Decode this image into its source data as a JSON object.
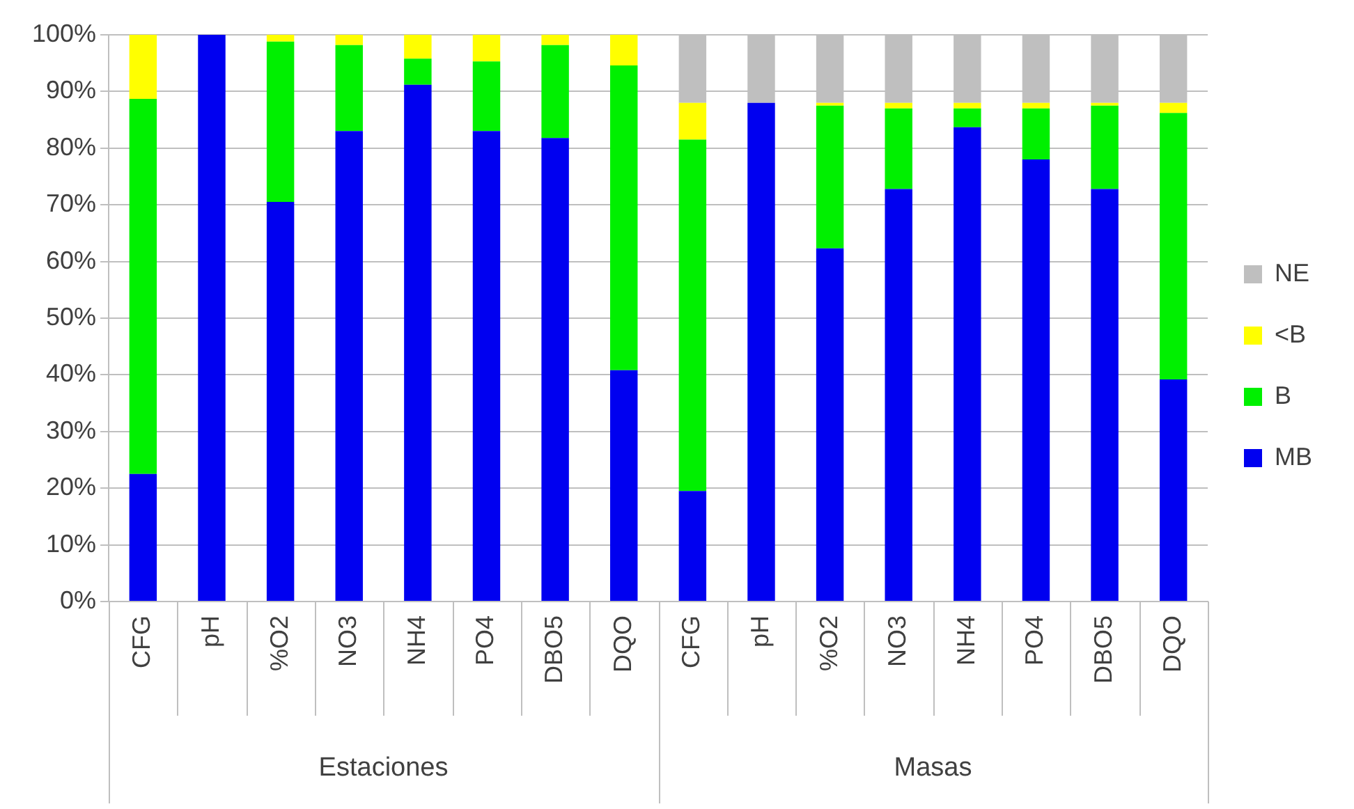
{
  "chart_data": {
    "type": "bar",
    "stacked": true,
    "categories": [
      "CFG",
      "pH",
      "%O2",
      "NO3",
      "NH4",
      "PO4",
      "DBO5",
      "DQO",
      "CFG",
      "pH",
      "%O2",
      "NO3",
      "NH4",
      "PO4",
      "DBO5",
      "DQO"
    ],
    "series": [
      {
        "name": "MB",
        "color": "#0000f0",
        "values": [
          22.5,
          100,
          70.5,
          83,
          91.2,
          83,
          81.8,
          40.8,
          19.5,
          88,
          62.3,
          72.8,
          83.7,
          78,
          72.8,
          39.2
        ]
      },
      {
        "name": "B",
        "color": "#00f000",
        "values": [
          66.2,
          0,
          28.3,
          15.2,
          4.6,
          12.3,
          16.4,
          53.8,
          62,
          0,
          25.2,
          14.2,
          3.3,
          9,
          14.7,
          47
        ]
      },
      {
        "name": "<B",
        "color": "#ffff00",
        "values": [
          11.3,
          0,
          1.2,
          1.8,
          4.2,
          4.7,
          1.8,
          5.4,
          6.5,
          0,
          0.5,
          1,
          1,
          1,
          0.5,
          1.8
        ]
      },
      {
        "name": "NE",
        "color": "#bfbfbf",
        "values": [
          0,
          0,
          0,
          0,
          0,
          0,
          0,
          0,
          12,
          12,
          12,
          12,
          12,
          12,
          12,
          12
        ]
      }
    ],
    "annotations": [
      "Estaciones",
      "Masas"
    ],
    "ylim": [
      0,
      100
    ],
    "yticks": [
      {
        "value": 0,
        "label": "0%"
      },
      {
        "value": 10,
        "label": "10%"
      },
      {
        "value": 20,
        "label": "20%"
      },
      {
        "value": 30,
        "label": "30%"
      },
      {
        "value": 40,
        "label": "40%"
      },
      {
        "value": 50,
        "label": "50%"
      },
      {
        "value": 60,
        "label": "60%"
      },
      {
        "value": 70,
        "label": "70%"
      },
      {
        "value": 80,
        "label": "80%"
      },
      {
        "value": 90,
        "label": "90%"
      },
      {
        "value": 100,
        "label": "100%"
      }
    ],
    "grid": "y",
    "legend": "right"
  }
}
